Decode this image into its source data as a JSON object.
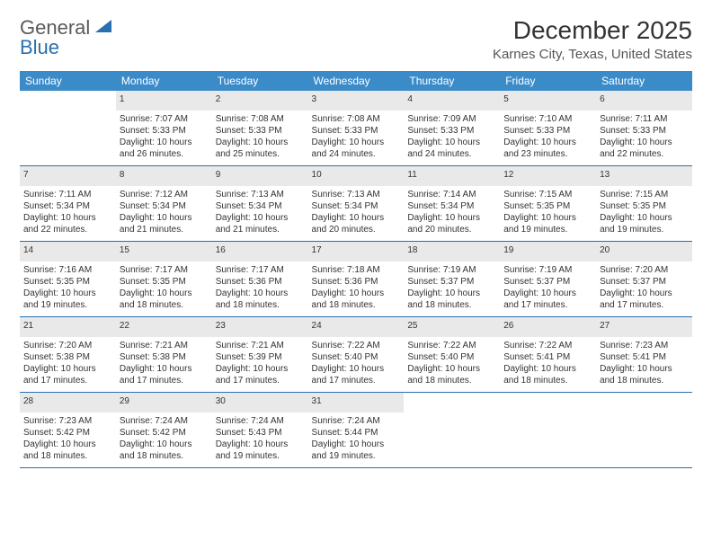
{
  "logo": {
    "text1": "General",
    "text2": "Blue"
  },
  "title": "December 2025",
  "location": "Karnes City, Texas, United States",
  "colors": {
    "header_bg": "#3b8bc9",
    "header_text": "#ffffff",
    "daynum_bg": "#e9e9e9",
    "daynum_text": "#666666",
    "rule": "#2a6fb0",
    "body_text": "#333333",
    "logo_blue": "#2a6fb0"
  },
  "weekdays": [
    "Sunday",
    "Monday",
    "Tuesday",
    "Wednesday",
    "Thursday",
    "Friday",
    "Saturday"
  ],
  "weeks": [
    {
      "nums": [
        "",
        "1",
        "2",
        "3",
        "4",
        "5",
        "6"
      ],
      "cells": [
        null,
        {
          "sunrise": "Sunrise: 7:07 AM",
          "sunset": "Sunset: 5:33 PM",
          "daylight": "Daylight: 10 hours and 26 minutes."
        },
        {
          "sunrise": "Sunrise: 7:08 AM",
          "sunset": "Sunset: 5:33 PM",
          "daylight": "Daylight: 10 hours and 25 minutes."
        },
        {
          "sunrise": "Sunrise: 7:08 AM",
          "sunset": "Sunset: 5:33 PM",
          "daylight": "Daylight: 10 hours and 24 minutes."
        },
        {
          "sunrise": "Sunrise: 7:09 AM",
          "sunset": "Sunset: 5:33 PM",
          "daylight": "Daylight: 10 hours and 24 minutes."
        },
        {
          "sunrise": "Sunrise: 7:10 AM",
          "sunset": "Sunset: 5:33 PM",
          "daylight": "Daylight: 10 hours and 23 minutes."
        },
        {
          "sunrise": "Sunrise: 7:11 AM",
          "sunset": "Sunset: 5:33 PM",
          "daylight": "Daylight: 10 hours and 22 minutes."
        }
      ]
    },
    {
      "nums": [
        "7",
        "8",
        "9",
        "10",
        "11",
        "12",
        "13"
      ],
      "cells": [
        {
          "sunrise": "Sunrise: 7:11 AM",
          "sunset": "Sunset: 5:34 PM",
          "daylight": "Daylight: 10 hours and 22 minutes."
        },
        {
          "sunrise": "Sunrise: 7:12 AM",
          "sunset": "Sunset: 5:34 PM",
          "daylight": "Daylight: 10 hours and 21 minutes."
        },
        {
          "sunrise": "Sunrise: 7:13 AM",
          "sunset": "Sunset: 5:34 PM",
          "daylight": "Daylight: 10 hours and 21 minutes."
        },
        {
          "sunrise": "Sunrise: 7:13 AM",
          "sunset": "Sunset: 5:34 PM",
          "daylight": "Daylight: 10 hours and 20 minutes."
        },
        {
          "sunrise": "Sunrise: 7:14 AM",
          "sunset": "Sunset: 5:34 PM",
          "daylight": "Daylight: 10 hours and 20 minutes."
        },
        {
          "sunrise": "Sunrise: 7:15 AM",
          "sunset": "Sunset: 5:35 PM",
          "daylight": "Daylight: 10 hours and 19 minutes."
        },
        {
          "sunrise": "Sunrise: 7:15 AM",
          "sunset": "Sunset: 5:35 PM",
          "daylight": "Daylight: 10 hours and 19 minutes."
        }
      ]
    },
    {
      "nums": [
        "14",
        "15",
        "16",
        "17",
        "18",
        "19",
        "20"
      ],
      "cells": [
        {
          "sunrise": "Sunrise: 7:16 AM",
          "sunset": "Sunset: 5:35 PM",
          "daylight": "Daylight: 10 hours and 19 minutes."
        },
        {
          "sunrise": "Sunrise: 7:17 AM",
          "sunset": "Sunset: 5:35 PM",
          "daylight": "Daylight: 10 hours and 18 minutes."
        },
        {
          "sunrise": "Sunrise: 7:17 AM",
          "sunset": "Sunset: 5:36 PM",
          "daylight": "Daylight: 10 hours and 18 minutes."
        },
        {
          "sunrise": "Sunrise: 7:18 AM",
          "sunset": "Sunset: 5:36 PM",
          "daylight": "Daylight: 10 hours and 18 minutes."
        },
        {
          "sunrise": "Sunrise: 7:19 AM",
          "sunset": "Sunset: 5:37 PM",
          "daylight": "Daylight: 10 hours and 18 minutes."
        },
        {
          "sunrise": "Sunrise: 7:19 AM",
          "sunset": "Sunset: 5:37 PM",
          "daylight": "Daylight: 10 hours and 17 minutes."
        },
        {
          "sunrise": "Sunrise: 7:20 AM",
          "sunset": "Sunset: 5:37 PM",
          "daylight": "Daylight: 10 hours and 17 minutes."
        }
      ]
    },
    {
      "nums": [
        "21",
        "22",
        "23",
        "24",
        "25",
        "26",
        "27"
      ],
      "cells": [
        {
          "sunrise": "Sunrise: 7:20 AM",
          "sunset": "Sunset: 5:38 PM",
          "daylight": "Daylight: 10 hours and 17 minutes."
        },
        {
          "sunrise": "Sunrise: 7:21 AM",
          "sunset": "Sunset: 5:38 PM",
          "daylight": "Daylight: 10 hours and 17 minutes."
        },
        {
          "sunrise": "Sunrise: 7:21 AM",
          "sunset": "Sunset: 5:39 PM",
          "daylight": "Daylight: 10 hours and 17 minutes."
        },
        {
          "sunrise": "Sunrise: 7:22 AM",
          "sunset": "Sunset: 5:40 PM",
          "daylight": "Daylight: 10 hours and 17 minutes."
        },
        {
          "sunrise": "Sunrise: 7:22 AM",
          "sunset": "Sunset: 5:40 PM",
          "daylight": "Daylight: 10 hours and 18 minutes."
        },
        {
          "sunrise": "Sunrise: 7:22 AM",
          "sunset": "Sunset: 5:41 PM",
          "daylight": "Daylight: 10 hours and 18 minutes."
        },
        {
          "sunrise": "Sunrise: 7:23 AM",
          "sunset": "Sunset: 5:41 PM",
          "daylight": "Daylight: 10 hours and 18 minutes."
        }
      ]
    },
    {
      "nums": [
        "28",
        "29",
        "30",
        "31",
        "",
        "",
        ""
      ],
      "cells": [
        {
          "sunrise": "Sunrise: 7:23 AM",
          "sunset": "Sunset: 5:42 PM",
          "daylight": "Daylight: 10 hours and 18 minutes."
        },
        {
          "sunrise": "Sunrise: 7:24 AM",
          "sunset": "Sunset: 5:42 PM",
          "daylight": "Daylight: 10 hours and 18 minutes."
        },
        {
          "sunrise": "Sunrise: 7:24 AM",
          "sunset": "Sunset: 5:43 PM",
          "daylight": "Daylight: 10 hours and 19 minutes."
        },
        {
          "sunrise": "Sunrise: 7:24 AM",
          "sunset": "Sunset: 5:44 PM",
          "daylight": "Daylight: 10 hours and 19 minutes."
        },
        null,
        null,
        null
      ]
    }
  ]
}
